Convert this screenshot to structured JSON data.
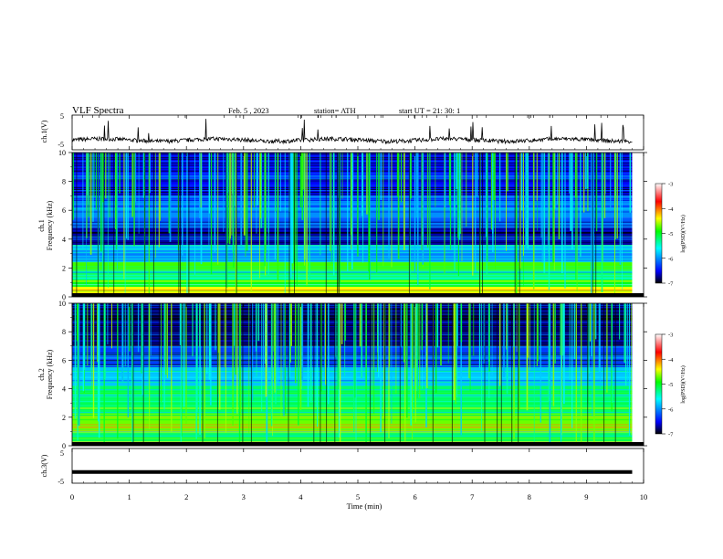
{
  "header": {
    "title": "VLF  Spectra",
    "date": "Feb. 5  , 2023",
    "station": "station= ATH",
    "start": "start  UT  =    21: 30: 1"
  },
  "chart_data": [
    {
      "type": "line",
      "panel": "ch1-waveform",
      "ylabel": "ch.1(V)",
      "ylim": [
        -5,
        5
      ],
      "yticks": [
        "5",
        "-5"
      ],
      "x_range_min": [
        0,
        9.8
      ],
      "baseline_v": -2.2,
      "series": [
        {
          "values_desc": "noisy waveform around -2 V with sporadic spikes"
        }
      ]
    },
    {
      "type": "heatmap",
      "panel": "ch1-spectrogram",
      "ylabel_lines": [
        "ch.1",
        "Frequency  (kHz)"
      ],
      "ylim": [
        0,
        10
      ],
      "yticks": [
        "0",
        "2",
        "4",
        "6",
        "8",
        "10"
      ],
      "x_range_min": [
        0,
        9.8
      ],
      "colorbar": {
        "label": "log(PSD)(V²/Hz)",
        "range": [
          -7,
          -3
        ],
        "ticks": [
          "-3",
          "-4",
          "-5",
          "-6",
          "-7"
        ]
      },
      "band_levels": [
        {
          "f": [
            0.0,
            0.2
          ],
          "level": -3.8
        },
        {
          "f": [
            0.2,
            0.7
          ],
          "level": -4.4
        },
        {
          "f": [
            0.7,
            1.2
          ],
          "level": -5.0
        },
        {
          "f": [
            1.2,
            1.8
          ],
          "level": -5.4
        },
        {
          "f": [
            1.8,
            2.4
          ],
          "level": -4.8
        },
        {
          "f": [
            2.4,
            3.2
          ],
          "level": -6.0
        },
        {
          "f": [
            3.2,
            3.6
          ],
          "level": -5.7
        },
        {
          "f": [
            3.6,
            4.8
          ],
          "level": -6.7
        },
        {
          "f": [
            4.8,
            5.5
          ],
          "level": -6.2
        },
        {
          "f": [
            5.5,
            7.0
          ],
          "level": -6.0
        },
        {
          "f": [
            7.0,
            10.0
          ],
          "level": -6.5
        }
      ]
    },
    {
      "type": "heatmap",
      "panel": "ch2-spectrogram",
      "ylabel_lines": [
        "ch.2",
        "Frequency  (kHz)"
      ],
      "ylim": [
        0,
        10
      ],
      "yticks": [
        "0",
        "2",
        "4",
        "6",
        "8",
        "10"
      ],
      "x_range_min": [
        0,
        9.8
      ],
      "colorbar": {
        "label": "log(PSD)(V²/Hz)",
        "range": [
          -7,
          -3
        ],
        "ticks": [
          "-3",
          "-4",
          "-5",
          "-6",
          "-7"
        ]
      },
      "band_levels": [
        {
          "f": [
            0.0,
            0.3
          ],
          "level": -4.0
        },
        {
          "f": [
            0.3,
            1.0
          ],
          "level": -5.2
        },
        {
          "f": [
            1.0,
            2.3
          ],
          "level": -4.7
        },
        {
          "f": [
            2.3,
            4.2
          ],
          "level": -5.2
        },
        {
          "f": [
            4.2,
            5.5
          ],
          "level": -5.8
        },
        {
          "f": [
            5.5,
            7.0
          ],
          "level": -6.3
        },
        {
          "f": [
            7.0,
            10.0
          ],
          "level": -6.8
        }
      ]
    },
    {
      "type": "line",
      "panel": "ch3-waveform",
      "ylabel": "ch.3(V)",
      "ylim": [
        -5,
        5
      ],
      "yticks": [
        "5",
        "-5"
      ],
      "x_range_min": [
        0,
        9.8
      ],
      "series": [
        {
          "constant_v": -1.8
        }
      ]
    }
  ],
  "xaxis": {
    "label": "Time  (min)",
    "ticks": [
      "0",
      "1",
      "2",
      "3",
      "4",
      "5",
      "6",
      "7",
      "8",
      "9",
      "10"
    ],
    "range": [
      0,
      10
    ]
  },
  "colors": {
    "colormap": [
      "#000000",
      "#0000ff",
      "#00ffff",
      "#00ff00",
      "#ffff00",
      "#ff0000",
      "#ffffff"
    ],
    "waveform": "#000000"
  }
}
